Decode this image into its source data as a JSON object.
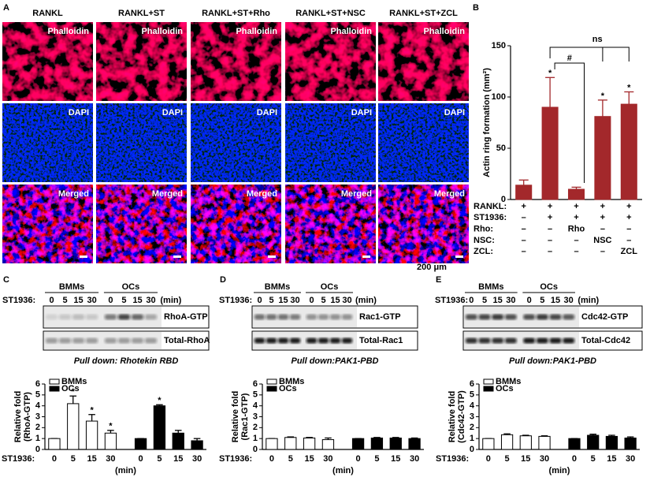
{
  "panel_labels": [
    "A",
    "B",
    "C",
    "D",
    "E"
  ],
  "panel_a": {
    "columns": [
      "RANKL",
      "RANKL+ST",
      "RANKL+ST+Rho",
      "RANKL+ST+NSC",
      "RANKL+ST+ZCL"
    ],
    "rows": [
      "Phalloidin",
      "DAPI",
      "Merged"
    ],
    "scale": "200 μm"
  },
  "blots": [
    {
      "groups": [
        "BMMs",
        "OCs"
      ],
      "x_label": "ST1936:",
      "times": [
        "0",
        "5",
        "15",
        "30",
        "0",
        "5",
        "15",
        "30"
      ],
      "unit": "(min)",
      "bands": [
        "RhoA-GTP",
        "Total-RhoA"
      ],
      "pulldown": "Pull down: Rhotekin RBD"
    },
    {
      "groups": [
        "BMMs",
        "OCs"
      ],
      "x_label": "ST1936:",
      "times": [
        "0",
        "5",
        "15",
        "30",
        "0",
        "5",
        "15",
        "30"
      ],
      "unit": "(min)",
      "bands": [
        "Rac1-GTP",
        "Total-Rac1"
      ],
      "pulldown": "Pull down:PAK1-PBD"
    },
    {
      "groups": [
        "BMMs",
        "OCs"
      ],
      "x_label": "ST1936:",
      "times": [
        "0",
        "5",
        "15",
        "30",
        "0",
        "5",
        "15",
        "30"
      ],
      "unit": "(min)",
      "bands": [
        "Cdc42-GTP",
        "Total-Cdc42"
      ],
      "pulldown": "Pull down:PAK1-PBD"
    }
  ],
  "chart_data": [
    {
      "type": "bar",
      "y_label": "Actin ring formation (mm²)",
      "values": [
        14,
        90,
        10,
        81,
        93
      ],
      "errors": [
        5,
        29,
        2,
        16,
        12
      ],
      "color": "#a3282b",
      "ylim": [
        0,
        150
      ],
      "yticks": [
        0,
        50,
        100,
        150
      ],
      "significance": [
        null,
        "*",
        null,
        "*",
        "*"
      ],
      "comparisons": [
        "#",
        "ns"
      ],
      "treatments": [
        {
          "name": "RANKL:",
          "marks": [
            "+",
            "+",
            "+",
            "+",
            "+"
          ]
        },
        {
          "name": "ST1936:",
          "marks": [
            "–",
            "+",
            "+",
            "+",
            "+"
          ]
        },
        {
          "name": "Rho:",
          "marks": [
            "–",
            "–",
            "Rho",
            "–",
            "–"
          ]
        },
        {
          "name": "NSC:",
          "marks": [
            "–",
            "–",
            "–",
            "NSC",
            "–"
          ]
        },
        {
          "name": "ZCL:",
          "marks": [
            "–",
            "–",
            "–",
            "–",
            "ZCL"
          ]
        }
      ]
    },
    {
      "type": "bar",
      "y_label": [
        "Relative fold",
        "(RhoA-GTP)"
      ],
      "x_label": "ST1936:",
      "x_unit": "(min)",
      "categories": [
        "0",
        "5",
        "15",
        "30",
        "0",
        "5",
        "15",
        "30"
      ],
      "ylim": [
        0,
        6
      ],
      "yticks": [
        0,
        1,
        2,
        3,
        4,
        5,
        6
      ],
      "series": [
        {
          "name": "BMMs",
          "color": "#ffffff",
          "values": [
            1,
            4.2,
            2.6,
            1.5,
            null,
            null,
            null,
            null
          ],
          "errors": [
            0,
            0.7,
            0.6,
            0.25,
            null,
            null,
            null,
            null
          ],
          "significance": [
            null,
            "*",
            "*",
            "*",
            null,
            null,
            null,
            null
          ]
        },
        {
          "name": "OCs",
          "color": "#000000",
          "values": [
            null,
            null,
            null,
            null,
            1,
            4.0,
            1.5,
            0.8
          ],
          "errors": [
            null,
            null,
            null,
            null,
            0,
            0.1,
            0.25,
            0.2
          ],
          "significance": [
            null,
            null,
            null,
            null,
            null,
            "*",
            null,
            null
          ]
        }
      ]
    },
    {
      "type": "bar",
      "y_label": [
        "Relative fold",
        "(Rac1-GTP)"
      ],
      "x_label": "ST1936:",
      "x_unit": "(min)",
      "categories": [
        "0",
        "5",
        "15",
        "30",
        "0",
        "5",
        "15",
        "30"
      ],
      "ylim": [
        0,
        6
      ],
      "yticks": [
        0,
        1,
        2,
        3,
        4,
        5,
        6
      ],
      "series": [
        {
          "name": "BMMs",
          "color": "#ffffff",
          "values": [
            1,
            1.1,
            1.05,
            0.9,
            null,
            null,
            null,
            null
          ],
          "errors": [
            0,
            0.05,
            0.05,
            0.15,
            null,
            null,
            null,
            null
          ]
        },
        {
          "name": "OCs",
          "color": "#000000",
          "values": [
            null,
            null,
            null,
            null,
            1,
            1.05,
            1.05,
            1
          ],
          "errors": [
            null,
            null,
            null,
            null,
            0,
            0.05,
            0.05,
            0.05
          ]
        }
      ]
    },
    {
      "type": "bar",
      "y_label": [
        "Relative fold",
        "(Cdc42-GTP)"
      ],
      "x_label": "ST1936:",
      "x_unit": "(min)",
      "categories": [
        "0",
        "5",
        "15",
        "30",
        "0",
        "5",
        "15",
        "30"
      ],
      "ylim": [
        0,
        6
      ],
      "yticks": [
        0,
        1,
        2,
        3,
        4,
        5,
        6
      ],
      "series": [
        {
          "name": "BMMs",
          "color": "#ffffff",
          "values": [
            1,
            1.35,
            1.25,
            1.2,
            null,
            null,
            null,
            null
          ],
          "errors": [
            0,
            0.08,
            0.05,
            0.05,
            null,
            null,
            null,
            null
          ]
        },
        {
          "name": "OCs",
          "color": "#000000",
          "values": [
            null,
            null,
            null,
            null,
            1,
            1.3,
            1.2,
            1.05
          ],
          "errors": [
            null,
            null,
            null,
            null,
            0,
            0.1,
            0.1,
            0.1
          ]
        }
      ]
    }
  ]
}
